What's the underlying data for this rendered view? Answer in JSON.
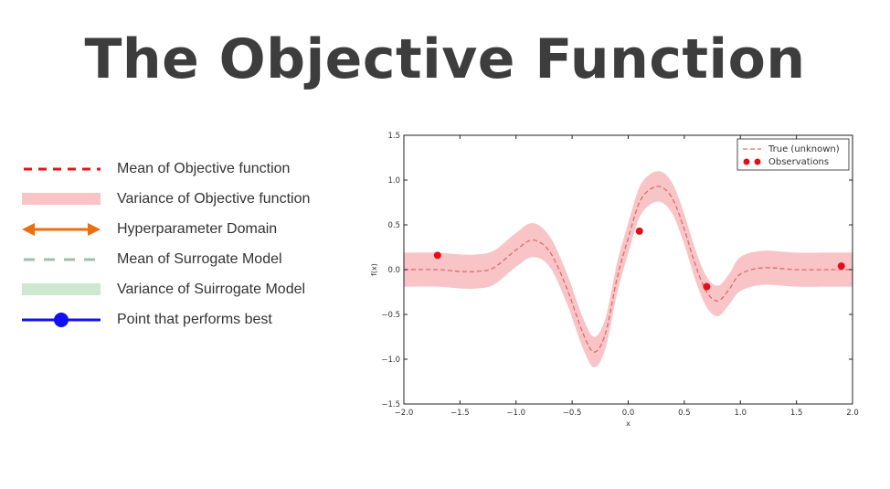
{
  "slide": {
    "title": "The Objective Function"
  },
  "legend": {
    "items": [
      {
        "label": "Mean of Objective function",
        "icon": "red-dashed-line-icon",
        "color": "#e8101a"
      },
      {
        "label": "Variance of Objective function",
        "icon": "pink-band-icon",
        "color": "#f8c4c6"
      },
      {
        "label": "Hyperparameter Domain",
        "icon": "orange-double-arrow-icon",
        "color": "#ee6d0e"
      },
      {
        "label": "Mean of Surrogate Model",
        "icon": "green-dashed-line-icon",
        "color": "#9cc1a6"
      },
      {
        "label": "Variance of Suirrogate Model",
        "icon": "green-band-icon",
        "color": "#cde8cf"
      },
      {
        "label": "Point that performs best",
        "icon": "blue-point-line-icon",
        "color": "#1010f0"
      }
    ]
  },
  "chart_data": {
    "type": "line",
    "xlim": [
      -2.0,
      2.0
    ],
    "ylim": [
      -1.5,
      1.5
    ],
    "xlabel": "x",
    "ylabel": "f(x)",
    "xticks": [
      "−2.0",
      "−1.5",
      "−1.0",
      "−0.5",
      "0.0",
      "0.5",
      "1.0",
      "1.5",
      "2.0"
    ],
    "yticks": [
      "1.5",
      "1.0",
      "0.5",
      "0.0",
      "−0.5",
      "−1.0",
      "−1.5"
    ],
    "grid": false,
    "legend_position": "top-right",
    "band_color": "#f8c4c6",
    "mean_color": "#e06a6a",
    "obs_color": "#e0101a",
    "series": [
      {
        "name": "True (unknown)",
        "style": "dashed",
        "x": [
          -2.0,
          -1.7,
          -1.5,
          -1.35,
          -1.2,
          -1.0,
          -0.85,
          -0.7,
          -0.55,
          -0.4,
          -0.3,
          -0.2,
          -0.1,
          0.0,
          0.1,
          0.2,
          0.3,
          0.4,
          0.5,
          0.6,
          0.7,
          0.8,
          0.9,
          1.0,
          1.2,
          1.5,
          1.8,
          2.0
        ],
        "y": [
          0.0,
          0.0,
          -0.02,
          -0.02,
          0.02,
          0.22,
          0.33,
          0.2,
          -0.2,
          -0.72,
          -0.92,
          -0.7,
          -0.1,
          0.35,
          0.75,
          0.9,
          0.92,
          0.78,
          0.45,
          0.05,
          -0.25,
          -0.35,
          -0.22,
          -0.05,
          0.02,
          0.0,
          0.0,
          0.0
        ],
        "band_halfwidth": [
          0.19,
          0.19,
          0.19,
          0.19,
          0.19,
          0.19,
          0.19,
          0.17,
          0.17,
          0.17,
          0.17,
          0.17,
          0.17,
          0.17,
          0.17,
          0.17,
          0.17,
          0.17,
          0.17,
          0.17,
          0.17,
          0.17,
          0.17,
          0.19,
          0.19,
          0.19,
          0.19,
          0.19
        ]
      },
      {
        "name": "Observations",
        "style": "points",
        "x": [
          -1.7,
          0.1,
          0.7,
          1.9
        ],
        "y": [
          0.16,
          0.43,
          -0.19,
          0.04
        ]
      }
    ]
  }
}
